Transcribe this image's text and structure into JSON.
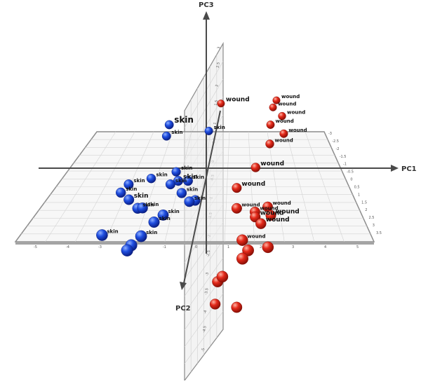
{
  "chart_data": {
    "type": "scatter",
    "projection": "3d",
    "title": "",
    "axes": {
      "x": "PC1",
      "y": "PC2",
      "z": "PC3"
    },
    "ticks": {
      "pc1": [
        "-5",
        "-4",
        "-3",
        "-2",
        "-1",
        "0",
        "1",
        "2",
        "3",
        "4",
        "5"
      ],
      "pc2": [
        "-3",
        "-2.5",
        "-2",
        "-1.5",
        "-1",
        "-0.5",
        "0",
        "0.5",
        "1",
        "1.5",
        "2",
        "2.5",
        "3",
        "3.5"
      ],
      "pc3": [
        "3",
        "2.5",
        "2",
        "1.5",
        "1",
        "0.5",
        "0",
        "-0.5",
        "-1",
        "-1.5",
        "-2",
        "-2.5",
        "-3",
        "-3.5",
        "-4",
        "-4.5",
        "-5"
      ]
    },
    "colors": {
      "skin": "#1a3fd6",
      "wound": "#e02418"
    },
    "series": [
      {
        "name": "skin",
        "label": "skin",
        "points": [
          {
            "pc1": -1.6,
            "pc2": -1.2,
            "pc3": 2.2
          },
          {
            "pc1": -1.7,
            "pc2": -1.1,
            "pc3": 1.7
          },
          {
            "pc1": 0.1,
            "pc2": -1.8,
            "pc3": 1.4
          },
          {
            "pc1": -3.0,
            "pc2": 0.1,
            "pc3": 0.2
          },
          {
            "pc1": -2.2,
            "pc2": -0.4,
            "pc3": 0.1
          },
          {
            "pc1": -1.2,
            "pc2": -0.7,
            "pc3": 0.2
          },
          {
            "pc1": -1.0,
            "pc2": 0.0,
            "pc3": 0.3
          },
          {
            "pc1": -0.8,
            "pc2": 0.4,
            "pc3": 0.0
          },
          {
            "pc1": -0.6,
            "pc2": 0.0,
            "pc3": 0.3
          },
          {
            "pc1": -1.3,
            "pc2": 0.1,
            "pc3": 0.2
          },
          {
            "pc1": -3.2,
            "pc2": 0.5,
            "pc3": 0.1
          },
          {
            "pc1": -2.7,
            "pc2": 1.2,
            "pc3": 0.3
          },
          {
            "pc1": -2.3,
            "pc2": 1.5,
            "pc3": 0.1
          },
          {
            "pc1": -2.1,
            "pc2": 1.6,
            "pc3": 0.2
          },
          {
            "pc1": -0.4,
            "pc2": 1.2,
            "pc3": 0.2
          },
          {
            "pc1": -1.3,
            "pc2": 1.8,
            "pc3": 0.0
          },
          {
            "pc1": -1.6,
            "pc2": 2.0,
            "pc3": -0.2
          },
          {
            "pc1": -3.3,
            "pc2": 2.7,
            "pc3": -0.3
          },
          {
            "pc1": -1.9,
            "pc2": 2.9,
            "pc3": -0.2
          },
          {
            "pc1": -2.2,
            "pc2": 3.1,
            "pc3": -0.5
          },
          {
            "pc1": -2.3,
            "pc2": 3.3,
            "pc3": -0.6
          },
          {
            "pc1": -0.2,
            "pc2": 1.0,
            "pc3": 0.1
          }
        ]
      },
      {
        "name": "wound",
        "label": "wound",
        "points": [
          {
            "pc1": 3.4,
            "pc2": -3.0,
            "pc3": 2.0
          },
          {
            "pc1": 3.2,
            "pc2": -2.8,
            "pc3": 1.8
          },
          {
            "pc1": 3.6,
            "pc2": -2.5,
            "pc3": 1.6
          },
          {
            "pc1": 3.0,
            "pc2": -2.2,
            "pc3": 1.4
          },
          {
            "pc1": 3.6,
            "pc2": -2.0,
            "pc3": 1.1
          },
          {
            "pc1": 2.9,
            "pc2": -1.6,
            "pc3": 0.9
          },
          {
            "pc1": 0.6,
            "pc2": -2.8,
            "pc3": 2.0
          },
          {
            "pc1": 2.2,
            "pc2": -0.6,
            "pc3": 0.5
          },
          {
            "pc1": 1.4,
            "pc2": 0.2,
            "pc3": 0.1
          },
          {
            "pc1": 1.4,
            "pc2": 1.0,
            "pc3": -0.3
          },
          {
            "pc1": 2.1,
            "pc2": 1.1,
            "pc3": -0.4
          },
          {
            "pc1": 2.6,
            "pc2": 0.9,
            "pc3": -0.3
          },
          {
            "pc1": 2.1,
            "pc2": 1.3,
            "pc3": -0.5
          },
          {
            "pc1": 2.3,
            "pc2": 1.6,
            "pc3": -0.6
          },
          {
            "pc1": 2.7,
            "pc2": 1.2,
            "pc3": -0.5
          },
          {
            "pc1": 1.6,
            "pc2": 2.4,
            "pc3": -0.8
          },
          {
            "pc1": 2.5,
            "pc2": 2.6,
            "pc3": -1.0
          },
          {
            "pc1": 1.8,
            "pc2": 2.8,
            "pc3": -1.0
          },
          {
            "pc1": 1.6,
            "pc2": 3.2,
            "pc3": -1.1
          },
          {
            "pc1": 0.9,
            "pc2": 2.6,
            "pc3": -2.5
          },
          {
            "pc1": 0.7,
            "pc2": 1.8,
            "pc3": -3.4
          },
          {
            "pc1": 0.6,
            "pc2": 1.6,
            "pc3": -4.7
          },
          {
            "pc1": 1.4,
            "pc2": 1.8,
            "pc3": -4.7
          }
        ]
      }
    ],
    "labels": [
      {
        "text": "skin",
        "series": "skin",
        "size": "large"
      },
      {
        "text": "skin",
        "series": "skin",
        "size": "small"
      },
      {
        "text": "skin",
        "series": "skin",
        "size": "small"
      },
      {
        "text": "skin",
        "series": "skin",
        "size": "small"
      },
      {
        "text": "skin",
        "series": "skin",
        "size": "small"
      },
      {
        "text": "skin",
        "series": "skin",
        "size": "small"
      },
      {
        "text": "skin",
        "series": "skin",
        "size": "medium"
      },
      {
        "text": "skin",
        "series": "skin",
        "size": "small"
      },
      {
        "text": "skin",
        "series": "skin",
        "size": "small"
      },
      {
        "text": "skin",
        "series": "skin",
        "size": "small"
      },
      {
        "text": "skin",
        "series": "skin",
        "size": "small"
      },
      {
        "text": "skin",
        "series": "skin",
        "size": "medium"
      },
      {
        "text": "skin",
        "series": "skin",
        "size": "small"
      },
      {
        "text": "skin",
        "series": "skin",
        "size": "small"
      },
      {
        "text": "skin",
        "series": "skin",
        "size": "small"
      },
      {
        "text": "skin",
        "series": "skin",
        "size": "small"
      },
      {
        "text": "skin",
        "series": "skin",
        "size": "small"
      },
      {
        "text": "skin",
        "series": "skin",
        "size": "small"
      },
      {
        "text": "skin",
        "series": "skin",
        "size": "small"
      },
      {
        "text": "wound",
        "series": "wound",
        "size": "small"
      },
      {
        "text": "wound",
        "series": "wound",
        "size": "small"
      },
      {
        "text": "wound",
        "series": "wound",
        "size": "small"
      },
      {
        "text": "wound",
        "series": "wound",
        "size": "small"
      },
      {
        "text": "wound",
        "series": "wound",
        "size": "small"
      },
      {
        "text": "wound",
        "series": "wound",
        "size": "small"
      },
      {
        "text": "wound",
        "series": "wound",
        "size": "medium"
      },
      {
        "text": "wound",
        "series": "wound",
        "size": "medium"
      },
      {
        "text": "wound",
        "series": "wound",
        "size": "medium"
      },
      {
        "text": "wound",
        "series": "wound",
        "size": "small"
      },
      {
        "text": "wound",
        "series": "wound",
        "size": "small"
      },
      {
        "text": "wound",
        "series": "wound",
        "size": "small"
      },
      {
        "text": "wound",
        "series": "wound",
        "size": "medium"
      },
      {
        "text": "wound",
        "series": "wound",
        "size": "medium"
      },
      {
        "text": "wound",
        "series": "wound",
        "size": "medium"
      },
      {
        "text": "wound",
        "series": "wound",
        "size": "small"
      }
    ]
  }
}
